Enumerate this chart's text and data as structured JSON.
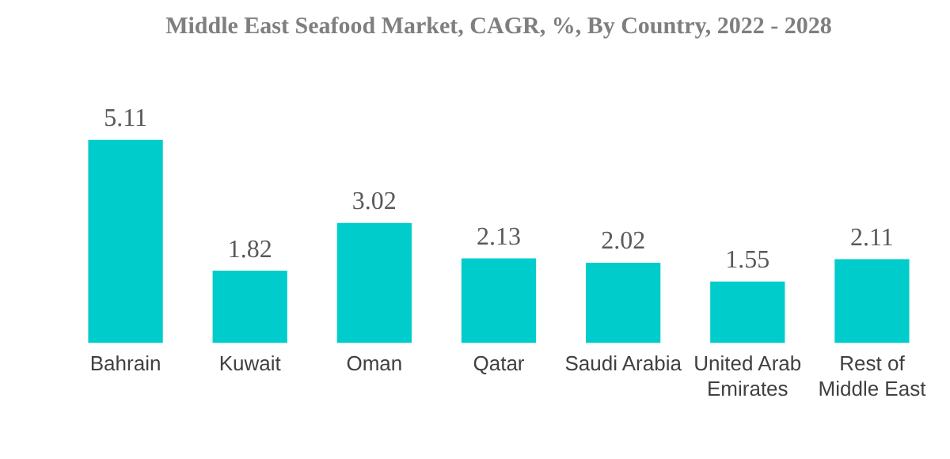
{
  "chart_data": {
    "type": "bar",
    "title": "Middle East Seafood Market, CAGR, %, By Country, 2022 - 2028",
    "categories": [
      "Bahrain",
      "Kuwait",
      "Oman",
      "Qatar",
      "Saudi Arabia",
      "United Arab Emirates",
      "Rest of Middle East"
    ],
    "values": [
      5.11,
      1.82,
      3.02,
      2.13,
      2.02,
      1.55,
      2.11
    ],
    "color": "#00cccc",
    "data_labels": true,
    "grid": false,
    "legend": false
  }
}
